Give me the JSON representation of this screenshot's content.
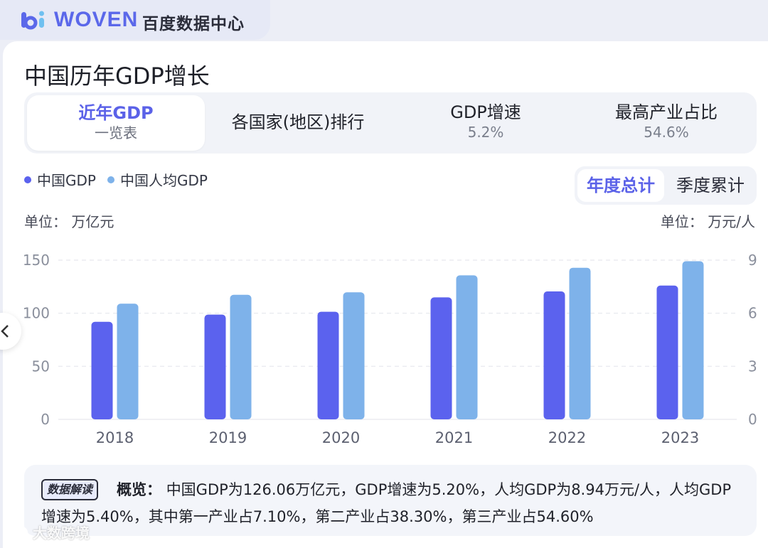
{
  "brand": {
    "logo_text": "WOVEN",
    "name": "百度数据中心"
  },
  "title": "中国历年GDP增长",
  "tabs": [
    {
      "line1": "近年GDP",
      "line2": "一览表",
      "active": true
    },
    {
      "line1": "各国家(地区)排行",
      "line2": "",
      "active": false
    },
    {
      "line1": "GDP增速",
      "line2": "5.2%",
      "active": false
    },
    {
      "line1": "最高产业占比",
      "line2": "54.6%",
      "active": false
    }
  ],
  "legend": [
    {
      "label": "中国GDP",
      "color": "#5b62ee"
    },
    {
      "label": "中国人均GDP",
      "color": "#7eb2ea"
    }
  ],
  "toggle": {
    "active": "年度总计",
    "inactive": "季度累计"
  },
  "units": {
    "left": "单位： 万亿元",
    "right": "单位： 万元/人"
  },
  "chart_data": {
    "type": "bar",
    "categories": [
      "2018",
      "2019",
      "2020",
      "2021",
      "2022",
      "2023"
    ],
    "series": [
      {
        "name": "中国GDP",
        "axis": "left",
        "unit": "万亿元",
        "color": "#5b62ee",
        "values": [
          91.9,
          98.7,
          101.4,
          114.9,
          120.5,
          126.06
        ]
      },
      {
        "name": "中国人均GDP",
        "axis": "right",
        "unit": "万元/人",
        "color": "#7eb2ea",
        "values": [
          6.54,
          7.04,
          7.18,
          8.14,
          8.57,
          8.94
        ]
      }
    ],
    "y_left": {
      "min": 0,
      "max": 150,
      "ticks": [
        "0",
        "50",
        "100",
        "150"
      ]
    },
    "y_right": {
      "min": 0,
      "max": 9,
      "ticks": [
        "0",
        "3",
        "6",
        "9"
      ]
    },
    "grid": true
  },
  "insight": {
    "badge": "数据解读",
    "heading": "概览：",
    "text": "中国GDP为126.06万亿元，GDP增速为5.20%，人均GDP为8.94万元/人，人均GDP增速为5.40%，其中第一产业占7.10%，第二产业占38.30%，第三产业占54.60%"
  },
  "watermark": "大数跨境"
}
